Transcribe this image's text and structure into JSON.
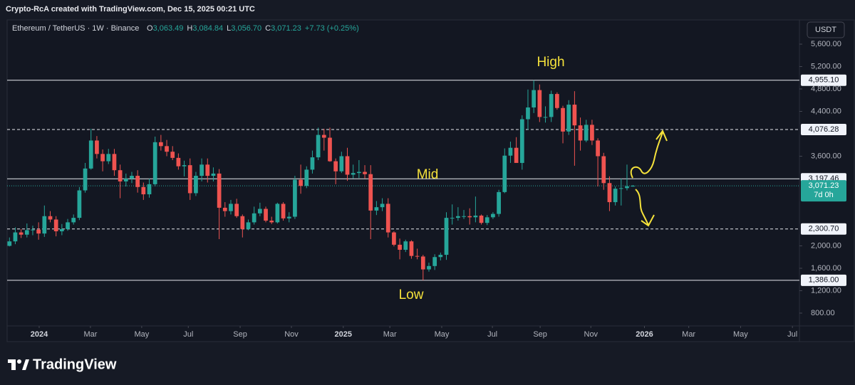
{
  "header": {
    "credit": "Crypto-RcA created with TradingView.com, Dec 15, 2025 00:21 UTC",
    "logo": "TradingView"
  },
  "chart_data": {
    "type": "candlestick",
    "symbol": "Ethereum / TetherUS · 1W · Binance",
    "ohlc_letters": [
      "O",
      "H",
      "L",
      "C"
    ],
    "ohlc_text": [
      "3,063.49",
      "3,084.84",
      "3,056.70",
      "3,071.23"
    ],
    "change": "+7.73 (+0.25%)",
    "currency": "USDT",
    "annotations": [
      "High",
      "Mid",
      "Low"
    ],
    "open": [
      2000,
      2080,
      2240,
      2200,
      2280,
      2290,
      2220,
      2530,
      2470,
      2260,
      2300,
      2420,
      2500,
      2990,
      3380,
      3880,
      3640,
      3510,
      3640,
      3350,
      3150,
      3200,
      3250,
      3050,
      2920,
      3100,
      3850,
      3780,
      3680,
      3570,
      3420,
      3440,
      2940,
      3250,
      3450,
      3250,
      3290,
      2680,
      2620,
      2750,
      2530,
      2300,
      2420,
      2580,
      2660,
      2450,
      2420,
      2750,
      2490,
      2520,
      3180,
      3070,
      3360,
      3580,
      3980,
      3930,
      3510,
      3330,
      3600,
      3270,
      3300,
      3320,
      3280,
      2630,
      2690,
      2750,
      2240,
      2020,
      1930,
      2080,
      1820,
      1810,
      1580,
      1640,
      1800,
      1840,
      2500,
      2500,
      2530,
      2530,
      2510,
      2540,
      2410,
      2510,
      2570,
      2960,
      3610,
      3750,
      3480,
      4260,
      4470,
      4780,
      4300,
      4300,
      4710,
      4460,
      4040,
      4520,
      4150,
      3880,
      4160,
      3880,
      3600,
      3120,
      2780,
      3020,
      3030,
      3063.49
    ],
    "high": [
      2150,
      2330,
      2300,
      2400,
      2360,
      2420,
      2720,
      2620,
      2530,
      2390,
      2480,
      2560,
      3050,
      3480,
      4090,
      3960,
      3720,
      3730,
      3730,
      3450,
      3290,
      3320,
      3350,
      3130,
      3200,
      3950,
      3980,
      3890,
      3780,
      3650,
      3520,
      3560,
      3320,
      3560,
      3560,
      3400,
      3370,
      2780,
      2820,
      2840,
      2560,
      2470,
      2700,
      2770,
      2700,
      2520,
      2770,
      2780,
      2600,
      3250,
      3450,
      3420,
      3700,
      4110,
      4090,
      4110,
      3560,
      3680,
      3750,
      3450,
      3530,
      3440,
      3440,
      2800,
      2850,
      2850,
      2260,
      2130,
      2110,
      2100,
      1950,
      1840,
      1700,
      1850,
      1880,
      2600,
      2740,
      2690,
      2640,
      2670,
      2880,
      2560,
      2550,
      2600,
      3000,
      3740,
      3860,
      3940,
      4330,
      4790,
      4955,
      4880,
      4490,
      4770,
      4740,
      4500,
      4600,
      4760,
      4290,
      4250,
      4250,
      3920,
      3660,
      3240,
      3060,
      3200,
      3450,
      3084.84
    ],
    "low": [
      1990,
      2030,
      2140,
      2150,
      2190,
      2110,
      2160,
      2420,
      2170,
      2190,
      2270,
      2380,
      2460,
      2950,
      3360,
      3560,
      3330,
      3460,
      3250,
      2850,
      3060,
      3120,
      2950,
      2820,
      2860,
      3060,
      3700,
      3600,
      3530,
      3360,
      3240,
      2820,
      2890,
      3150,
      3130,
      3150,
      2120,
      2520,
      2560,
      2500,
      2150,
      2280,
      2380,
      2530,
      2420,
      2390,
      2400,
      2450,
      2420,
      2480,
      2930,
      3030,
      3290,
      3530,
      3700,
      3500,
      3100,
      3300,
      3160,
      3200,
      3210,
      3200,
      2120,
      2550,
      2620,
      2150,
      1990,
      1760,
      1890,
      1770,
      1760,
      1386,
      1540,
      1570,
      1740,
      1750,
      2380,
      2450,
      2480,
      2380,
      2420,
      2380,
      2370,
      2480,
      2520,
      2940,
      3480,
      3500,
      3360,
      4070,
      4370,
      4210,
      4200,
      4210,
      4430,
      3830,
      3980,
      3430,
      3700,
      3850,
      3800,
      3060,
      3000,
      2620,
      2720,
      2720,
      2990,
      3056.7
    ],
    "close": [
      2080,
      2240,
      2200,
      2280,
      2290,
      2220,
      2530,
      2470,
      2260,
      2300,
      2420,
      2500,
      2990,
      3380,
      3880,
      3640,
      3510,
      3640,
      3350,
      3150,
      3200,
      3250,
      3050,
      2920,
      3100,
      3850,
      3780,
      3680,
      3570,
      3420,
      3440,
      2940,
      3250,
      3450,
      3250,
      3290,
      2680,
      2620,
      2750,
      2530,
      2300,
      2420,
      2580,
      2660,
      2450,
      2420,
      2750,
      2490,
      2520,
      3180,
      3070,
      3360,
      3580,
      3980,
      3930,
      3510,
      3330,
      3600,
      3270,
      3300,
      3320,
      3280,
      2630,
      2690,
      2750,
      2240,
      2020,
      1930,
      2080,
      1820,
      1810,
      1580,
      1640,
      1800,
      1840,
      2500,
      2500,
      2530,
      2530,
      2510,
      2540,
      2410,
      2510,
      2570,
      2960,
      3610,
      3750,
      3480,
      4260,
      4470,
      4780,
      4300,
      4300,
      4710,
      4460,
      4040,
      4520,
      4150,
      3880,
      4160,
      3880,
      3600,
      3120,
      2780,
      3020,
      3030,
      3063.49,
      3071.23
    ],
    "up_color": "#26a69a",
    "down_color": "#ef5350",
    "xlim": [
      -0.4,
      135.6
    ],
    "xticks": [
      {
        "value": 5.1,
        "label": "2024"
      },
      {
        "value": 13.9,
        "label": "Mar"
      },
      {
        "value": 22.7,
        "label": "May"
      },
      {
        "value": 30.7,
        "label": "Jul"
      },
      {
        "value": 39.6,
        "label": "Sep"
      },
      {
        "value": 48.4,
        "label": "Nov"
      },
      {
        "value": 57.3,
        "label": "2025"
      },
      {
        "value": 65.3,
        "label": "Mar"
      },
      {
        "value": 74.2,
        "label": "May"
      },
      {
        "value": 82.9,
        "label": "Jul"
      },
      {
        "value": 91.1,
        "label": "Sep"
      },
      {
        "value": 99.8,
        "label": "Nov"
      },
      {
        "value": 109,
        "label": "2026"
      },
      {
        "value": 116.6,
        "label": "Mar"
      },
      {
        "value": 125.5,
        "label": "May"
      },
      {
        "value": 134.4,
        "label": "Jul"
      }
    ],
    "ylim": [
      571,
      6032
    ],
    "yticks": [
      {
        "value": 5600,
        "label": "5,600.00"
      },
      {
        "value": 5200,
        "label": "5,200.00"
      },
      {
        "value": 4800,
        "label": "4,800.00"
      },
      {
        "value": 4400,
        "label": "4,400.00"
      },
      {
        "value": 3600,
        "label": "3,600.00"
      },
      {
        "value": 2000,
        "label": "2,000.00"
      },
      {
        "value": 1600,
        "label": "1,600.00"
      },
      {
        "value": 1200,
        "label": "1,200.00"
      },
      {
        "value": 800,
        "label": "800.00"
      }
    ],
    "levels": [
      {
        "value": 4955.1,
        "label": "4,955.10",
        "style": "solid"
      },
      {
        "value": 4076.28,
        "label": "4,076.28",
        "style": "dashed"
      },
      {
        "value": 3197.46,
        "label": "3,197.46",
        "style": "solid"
      },
      {
        "value": 2300.7,
        "label": "2,300.70",
        "style": "dashed"
      },
      {
        "value": 1386,
        "label": "1,386.00",
        "style": "solid"
      }
    ],
    "last_price": {
      "value": 3071.23,
      "label": "3,071.23",
      "countdown": "7d 0h",
      "color": "#26a69a"
    }
  }
}
